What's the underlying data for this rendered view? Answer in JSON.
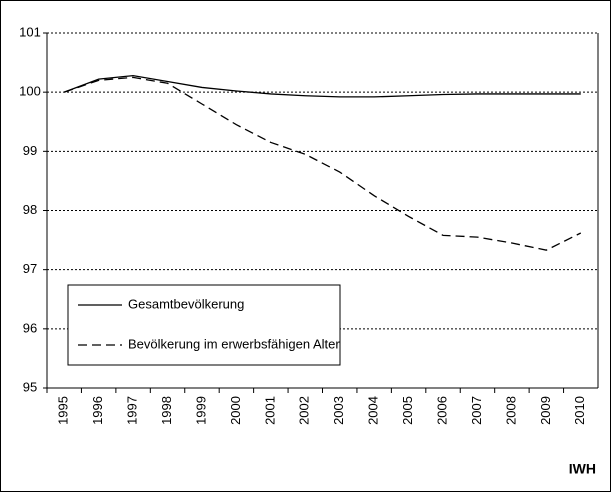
{
  "chart_data": {
    "type": "line",
    "categories": [
      "1995",
      "1996",
      "1997",
      "1998",
      "1999",
      "2000",
      "2001",
      "2002",
      "2003",
      "2004",
      "2005",
      "2006",
      "2007",
      "2008",
      "2009",
      "2010"
    ],
    "series": [
      {
        "name": "Gesamtbevölkerung",
        "color": "#000000",
        "dashed": false,
        "values": [
          100,
          100.22,
          100.28,
          100.18,
          100.08,
          100.02,
          99.97,
          99.94,
          99.92,
          99.92,
          99.94,
          99.96,
          99.97,
          99.97,
          99.97,
          99.97
        ]
      },
      {
        "name": "Bevölkerung im erwerbsfähigen Alter",
        "color": "#000000",
        "dashed": true,
        "values": [
          100,
          100.2,
          100.25,
          100.15,
          99.8,
          99.45,
          99.15,
          98.95,
          98.65,
          98.25,
          97.9,
          97.58,
          97.55,
          97.45,
          97.33,
          97.62
        ]
      }
    ],
    "ylim": [
      95,
      101
    ],
    "yticks": [
      95,
      96,
      97,
      98,
      99,
      100,
      101
    ],
    "grid": true,
    "legend": "lower-left",
    "source": "IWH"
  }
}
